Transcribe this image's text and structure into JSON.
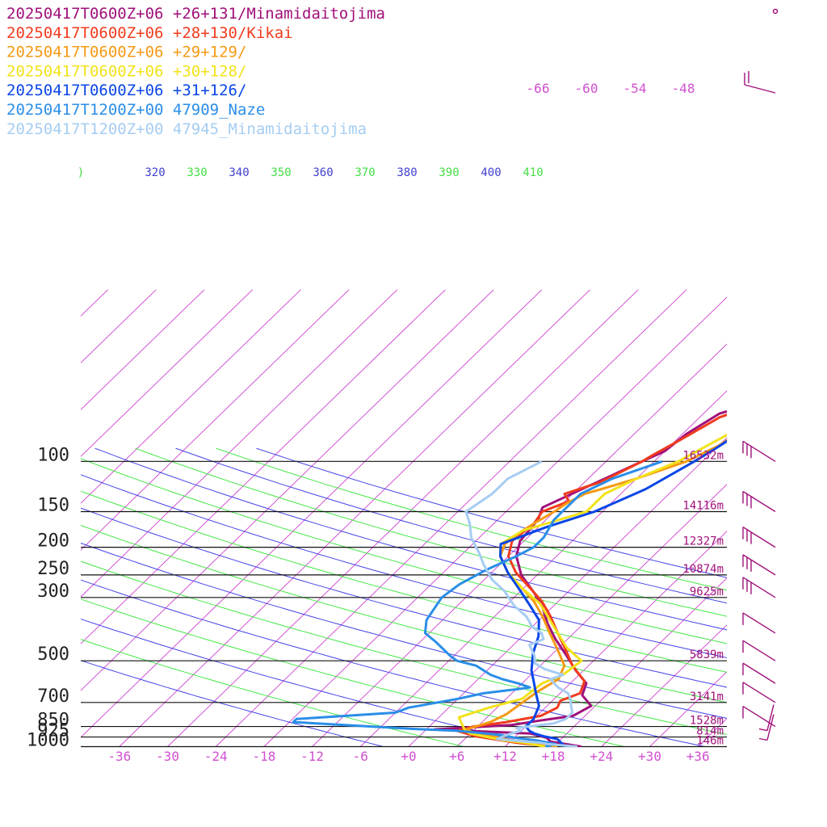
{
  "legend": [
    {
      "label": "20250417T0600Z+06 +26+131/Minamidaitojima",
      "color": "#a0107a"
    },
    {
      "label": "20250417T0600Z+06 +28+130/Kikai",
      "color": "#f03c1e"
    },
    {
      "label": "20250417T0600Z+06 +29+129/",
      "color": "#f59a14"
    },
    {
      "label": "20250417T0600Z+06 +30+128/",
      "color": "#f2e21a"
    },
    {
      "label": "20250417T0600Z+06 +31+126/",
      "color": "#0a46e6"
    },
    {
      "label": "20250417T1200Z+00 47909_Naze",
      "color": "#2a8ee8"
    },
    {
      "label": "20250417T1200Z+00 47945_Minamidaitojima",
      "color": "#a6cdf2"
    }
  ],
  "chart_data": {
    "type": "line",
    "pressure_levels": [
      {
        "p": 100,
        "label": "100",
        "height": "16532m"
      },
      {
        "p": 150,
        "label": "150",
        "height": "14116m"
      },
      {
        "p": 200,
        "label": "200",
        "height": "12327m"
      },
      {
        "p": 250,
        "label": "250",
        "height": "10874m"
      },
      {
        "p": 300,
        "label": "300",
        "height": "9625m"
      },
      {
        "p": 500,
        "label": "500",
        "height": "5839m"
      },
      {
        "p": 700,
        "label": "700",
        "height": "3141m"
      },
      {
        "p": 850,
        "label": "850",
        "height": "1528m"
      },
      {
        "p": 925,
        "label": "925",
        "height": "814m"
      },
      {
        "p": 1000,
        "label": "1000",
        "height": "146m"
      }
    ],
    "temperature_ticks": [
      "-36",
      "-30",
      "-24",
      "-18",
      "-12",
      "-6",
      "+0",
      "+6",
      "+12",
      "+18",
      "+24",
      "+30",
      "+36"
    ],
    "theta_labels": [
      ")",
      "320",
      "330",
      "340",
      "350",
      "360",
      "370",
      "380",
      "390",
      "400",
      "410"
    ],
    "mixing_ratio_labels": [
      "-66",
      "-60",
      "-54",
      "-48"
    ],
    "series": [
      {
        "name": "20250417T0600Z+06 +26+131/Minamidaitojima",
        "color": "#a0107a",
        "points": [
          [
            21.5,
            1000
          ],
          [
            17,
            960
          ],
          [
            16,
            930
          ],
          [
            13.5,
            900
          ],
          [
            1,
            870
          ],
          [
            10,
            840
          ],
          [
            13,
            810
          ],
          [
            16.5,
            780
          ],
          [
            17.5,
            720
          ],
          [
            15,
            660
          ],
          [
            14,
            600
          ],
          [
            11,
            540
          ],
          [
            8,
            480
          ],
          [
            4.5,
            420
          ],
          [
            1.5,
            370
          ],
          [
            -1.5,
            320
          ],
          [
            -4,
            290
          ],
          [
            -8,
            250
          ],
          [
            -11,
            215
          ],
          [
            -12.5,
            190
          ],
          [
            -13,
            160
          ],
          [
            -14,
            145
          ],
          [
            -11,
            122
          ],
          [
            -7.5,
            100
          ],
          [
            -6,
            92
          ],
          [
            -5.5,
            80
          ],
          [
            -4,
            68
          ],
          [
            0.5,
            60
          ],
          [
            8,
            46
          ],
          [
            30,
            25
          ]
        ]
      },
      {
        "name": "20250417T0600Z+06 +28+130/Kikai",
        "color": "#f03c1e",
        "points": [
          [
            18,
            1000
          ],
          [
            13,
            970
          ],
          [
            7,
            920
          ],
          [
            4,
            880
          ],
          [
            5.5,
            850
          ],
          [
            9,
            820
          ],
          [
            12.5,
            780
          ],
          [
            13.5,
            730
          ],
          [
            13,
            690
          ],
          [
            14.5,
            650
          ],
          [
            13.5,
            590
          ],
          [
            10,
            520
          ],
          [
            7,
            455
          ],
          [
            4,
            400
          ],
          [
            1,
            350
          ],
          [
            -2,
            310
          ],
          [
            -5,
            280
          ],
          [
            -9,
            245
          ],
          [
            -12,
            215
          ],
          [
            -13.5,
            190
          ],
          [
            -13,
            165
          ],
          [
            -13.5,
            150
          ],
          [
            -11.5,
            138
          ],
          [
            -13,
            130
          ],
          [
            -10,
            118
          ],
          [
            -7.5,
            100
          ],
          [
            -7,
            95
          ],
          [
            -5.5,
            84
          ],
          [
            -3.5,
            70
          ],
          [
            1,
            60
          ],
          [
            9,
            46
          ],
          [
            31,
            25
          ]
        ]
      },
      {
        "name": "20250417T0600Z+06 +29+129/",
        "color": "#f59a14",
        "points": [
          [
            18.5,
            1000
          ],
          [
            16,
            980
          ],
          [
            12,
            950
          ],
          [
            6,
            890
          ],
          [
            5,
            870
          ],
          [
            7,
            820
          ],
          [
            8,
            770
          ],
          [
            8.5,
            700
          ],
          [
            9,
            640
          ],
          [
            10,
            580
          ],
          [
            9,
            520
          ],
          [
            6,
            455
          ],
          [
            3,
            400
          ],
          [
            0,
            350
          ],
          [
            -3,
            310
          ],
          [
            -6,
            280
          ],
          [
            -10,
            245
          ],
          [
            -13,
            215
          ],
          [
            -14,
            195
          ],
          [
            -13.5,
            175
          ],
          [
            -13,
            165
          ],
          [
            -12,
            150
          ],
          [
            -11.5,
            140
          ],
          [
            -10.5,
            130
          ],
          [
            -9,
            125
          ],
          [
            -6,
            115
          ],
          [
            -2,
            100
          ],
          [
            0,
            88
          ],
          [
            2,
            70
          ],
          [
            4,
            60
          ],
          [
            11,
            46
          ],
          [
            32,
            25
          ]
        ]
      },
      {
        "name": "20250417T0600Z+06 +30+128/",
        "color": "#f2e21a",
        "points": [
          [
            17,
            1000
          ],
          [
            14,
            970
          ],
          [
            11,
            950
          ],
          [
            6,
            900
          ],
          [
            5,
            880
          ],
          [
            2.5,
            790
          ],
          [
            5,
            730
          ],
          [
            8,
            680
          ],
          [
            8.5,
            600
          ],
          [
            10,
            560
          ],
          [
            10.5,
            500
          ],
          [
            7,
            450
          ],
          [
            4,
            400
          ],
          [
            1,
            355
          ],
          [
            -2,
            315
          ],
          [
            -6,
            280
          ],
          [
            -10,
            245
          ],
          [
            -13,
            215
          ],
          [
            -14.5,
            195
          ],
          [
            -13.5,
            175
          ],
          [
            -8,
            150
          ],
          [
            -8,
            130
          ],
          [
            -6,
            115
          ],
          [
            -3,
            100
          ],
          [
            -1,
            85
          ],
          [
            1.5,
            70
          ],
          [
            5,
            60
          ],
          [
            13,
            46
          ],
          [
            33,
            25
          ]
        ]
      },
      {
        "name": "20250417T0600Z+06 +31+126/",
        "color": "#0a46e6",
        "points": [
          [
            19.5,
            1000
          ],
          [
            18.5,
            970
          ],
          [
            17.5,
            940
          ],
          [
            15.5,
            920
          ],
          [
            14,
            900
          ],
          [
            13,
            880
          ],
          [
            12,
            850
          ],
          [
            12,
            800
          ],
          [
            11,
            720
          ],
          [
            9,
            650
          ],
          [
            7.5,
            600
          ],
          [
            5.5,
            540
          ],
          [
            3.5,
            470
          ],
          [
            2,
            410
          ],
          [
            0,
            360
          ],
          [
            -3,
            320
          ],
          [
            -6,
            285
          ],
          [
            -10,
            245
          ],
          [
            -13,
            215
          ],
          [
            -14.5,
            195
          ],
          [
            -11,
            170
          ],
          [
            -7,
            150
          ],
          [
            -3.5,
            125
          ],
          [
            -1,
            100
          ],
          [
            0,
            90
          ],
          [
            2,
            70
          ],
          [
            6,
            60
          ],
          [
            15,
            46
          ],
          [
            35,
            25
          ]
        ]
      },
      {
        "name": "20250417T1200Z+00 47909_Naze",
        "color": "#2a8ee8",
        "points": [
          [
            17,
            1000
          ],
          [
            18,
            980
          ],
          [
            15,
            950
          ],
          [
            12,
            930
          ],
          [
            10,
            910
          ],
          [
            4,
            880
          ],
          [
            -2,
            866
          ],
          [
            -17.5,
            820
          ],
          [
            -17.5,
            800
          ],
          [
            -6,
            760
          ],
          [
            -5,
            730
          ],
          [
            0,
            680
          ],
          [
            2.5,
            650
          ],
          [
            6,
            630
          ],
          [
            7.5,
            620
          ],
          [
            5.5,
            600
          ],
          [
            3,
            580
          ],
          [
            1,
            560
          ],
          [
            -2,
            520
          ],
          [
            -5,
            500
          ],
          [
            -6.5,
            480
          ],
          [
            -10,
            430
          ],
          [
            -12.5,
            400
          ],
          [
            -14,
            360
          ],
          [
            -15,
            300
          ],
          [
            -14.5,
            270
          ],
          [
            -13,
            240
          ],
          [
            -11,
            215
          ],
          [
            -10,
            200
          ],
          [
            -10,
            185
          ],
          [
            -11,
            160
          ],
          [
            -11,
            130
          ],
          [
            -9,
            115
          ],
          [
            -5,
            100
          ]
        ]
      },
      {
        "name": "20250417T1200Z+00 47945_Minamidaitojima",
        "color": "#a6cdf2",
        "points": [
          [
            21,
            1000
          ],
          [
            17,
            980
          ],
          [
            16,
            970
          ],
          [
            14,
            960
          ],
          [
            12,
            950
          ],
          [
            10,
            940
          ],
          [
            11,
            900
          ],
          [
            12,
            880
          ],
          [
            11,
            860
          ],
          [
            15,
            830
          ],
          [
            16,
            800
          ],
          [
            16,
            760
          ],
          [
            15,
            720
          ],
          [
            14,
            680
          ],
          [
            13,
            650
          ],
          [
            11,
            620
          ],
          [
            9,
            580
          ],
          [
            10,
            560
          ],
          [
            7,
            535
          ],
          [
            5,
            510
          ],
          [
            4,
            480
          ],
          [
            2,
            440
          ],
          [
            3,
            420
          ],
          [
            2,
            400
          ],
          [
            0,
            380
          ],
          [
            -2,
            350
          ],
          [
            -5,
            320
          ],
          [
            -8,
            285
          ],
          [
            -11,
            260
          ],
          [
            -14,
            230
          ],
          [
            -16,
            210
          ],
          [
            -19,
            185
          ],
          [
            -21,
            165
          ],
          [
            -23,
            150
          ],
          [
            -22,
            130
          ],
          [
            -22,
            115
          ],
          [
            -20,
            100
          ]
        ]
      }
    ],
    "wind_barbs_pressure": [
      100,
      150,
      200,
      250,
      300,
      400,
      500,
      600,
      700,
      850,
      925,
      1000
    ]
  }
}
